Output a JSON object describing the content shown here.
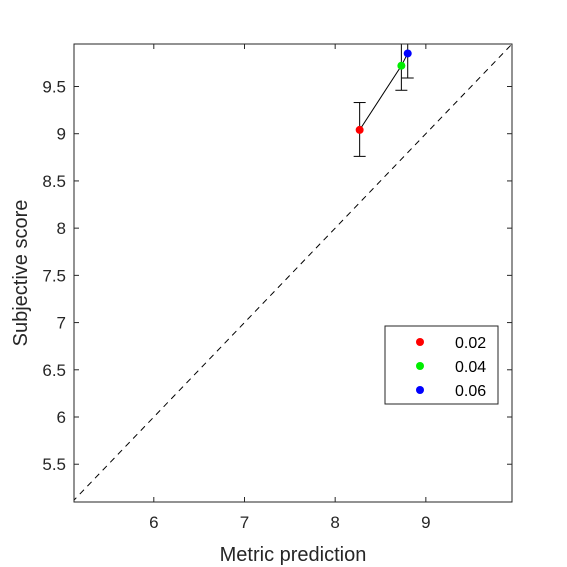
{
  "chart_data": {
    "type": "scatter",
    "xlabel": "Metric prediction",
    "ylabel": "Subjective score",
    "xlim": [
      5.12,
      9.95
    ],
    "ylim": [
      5.1,
      9.95
    ],
    "xticks": [
      6,
      7,
      8,
      9
    ],
    "yticks": [
      5.5,
      6,
      6.5,
      7,
      7.5,
      8,
      8.5,
      9,
      9.5
    ],
    "grid": false,
    "legend_position": "lower-right",
    "reference_line": {
      "style": "dashed",
      "color": "#000000",
      "description": "y = x"
    },
    "connecting_line": true,
    "series": [
      {
        "name": "0.02",
        "color": "#ff0000",
        "x": 8.27,
        "y": 9.04,
        "err_low": 8.76,
        "err_high": 9.33
      },
      {
        "name": "0.04",
        "color": "#00ee00",
        "x": 8.73,
        "y": 9.72,
        "err_low": 9.46,
        "err_high": 9.98
      },
      {
        "name": "0.06",
        "color": "#0000ff",
        "x": 8.8,
        "y": 9.85,
        "err_low": 9.59,
        "err_high": 10.11
      }
    ]
  }
}
